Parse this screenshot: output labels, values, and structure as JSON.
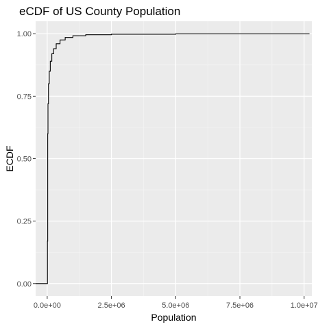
{
  "chart_data": {
    "type": "line",
    "title": "eCDF of US County Population",
    "xlabel": "Population",
    "ylabel": "ECDF",
    "xlim": [
      -450000,
      10300000
    ],
    "ylim": [
      -0.05,
      1.05
    ],
    "grid": true,
    "x_ticks": [
      0,
      2500000,
      5000000,
      7500000,
      10000000
    ],
    "x_tick_labels": [
      "0.0e+00",
      "2.5e+06",
      "5.0e+06",
      "7.5e+06",
      "1.0e+07"
    ],
    "y_ticks": [
      0,
      0.25,
      0.5,
      0.75,
      1.0
    ],
    "y_tick_labels": [
      "0.00",
      "0.25",
      "0.50",
      "0.75",
      "1.00"
    ],
    "line_color": "#000000",
    "series": [
      {
        "x": [
          -450000,
          10000,
          10000,
          20000,
          30000,
          50000,
          80000,
          120000,
          180000,
          250000,
          350000,
          500000,
          700000,
          1000000,
          1500000,
          2500000,
          5000000,
          10200000
        ],
        "y": [
          0.0,
          0.0,
          0.17,
          0.6,
          0.72,
          0.8,
          0.85,
          0.89,
          0.92,
          0.94,
          0.96,
          0.975,
          0.985,
          0.992,
          0.996,
          0.998,
          0.9995,
          1.0
        ]
      }
    ]
  }
}
